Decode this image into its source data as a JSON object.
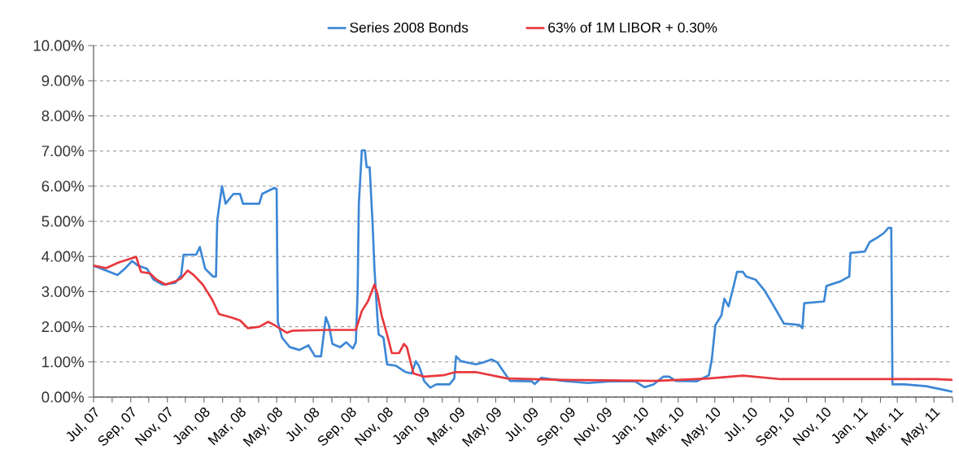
{
  "chart_data": {
    "type": "line",
    "legend": "top",
    "grid": "y",
    "line_style": "solid",
    "xlim": [
      "2007-07-01",
      "2011-06-01"
    ],
    "ylim": [
      0,
      10
    ],
    "yticks": [
      {
        "value": 0,
        "label": "0.00%"
      },
      {
        "value": 1,
        "label": "1.00%"
      },
      {
        "value": 2,
        "label": "2.00%"
      },
      {
        "value": 3,
        "label": "3.00%"
      },
      {
        "value": 4,
        "label": "4.00%"
      },
      {
        "value": 5,
        "label": "5.00%"
      },
      {
        "value": 6,
        "label": "6.00%"
      },
      {
        "value": 7,
        "label": "7.00%"
      },
      {
        "value": 8,
        "label": "8.00%"
      },
      {
        "value": 9,
        "label": "9.00%"
      },
      {
        "value": 10,
        "label": "10.00%"
      }
    ],
    "xticks": [
      {
        "value": "2007-07-01",
        "label": "Jul, 07"
      },
      {
        "value": "2007-08-01",
        "label": null
      },
      {
        "value": "2007-09-01",
        "label": "Sep, 07"
      },
      {
        "value": "2007-10-01",
        "label": null
      },
      {
        "value": "2007-11-01",
        "label": "Nov, 07"
      },
      {
        "value": "2007-12-01",
        "label": null
      },
      {
        "value": "2008-01-01",
        "label": "Jan, 08"
      },
      {
        "value": "2008-02-01",
        "label": null
      },
      {
        "value": "2008-03-01",
        "label": "Mar, 08"
      },
      {
        "value": "2008-04-01",
        "label": null
      },
      {
        "value": "2008-05-01",
        "label": "May, 08"
      },
      {
        "value": "2008-06-01",
        "label": null
      },
      {
        "value": "2008-07-01",
        "label": "Jul, 08"
      },
      {
        "value": "2008-08-01",
        "label": null
      },
      {
        "value": "2008-09-01",
        "label": "Sep, 08"
      },
      {
        "value": "2008-10-01",
        "label": null
      },
      {
        "value": "2008-11-01",
        "label": "Nov, 08"
      },
      {
        "value": "2008-12-01",
        "label": null
      },
      {
        "value": "2009-01-01",
        "label": "Jan, 09"
      },
      {
        "value": "2009-02-01",
        "label": null
      },
      {
        "value": "2009-03-01",
        "label": "Mar, 09"
      },
      {
        "value": "2009-04-01",
        "label": null
      },
      {
        "value": "2009-05-01",
        "label": "May, 09"
      },
      {
        "value": "2009-06-01",
        "label": null
      },
      {
        "value": "2009-07-01",
        "label": "Jul, 09"
      },
      {
        "value": "2009-08-01",
        "label": null
      },
      {
        "value": "2009-09-01",
        "label": "Sep, 09"
      },
      {
        "value": "2009-10-01",
        "label": null
      },
      {
        "value": "2009-11-01",
        "label": "Nov, 09"
      },
      {
        "value": "2009-12-01",
        "label": null
      },
      {
        "value": "2010-01-01",
        "label": "Jan, 10"
      },
      {
        "value": "2010-02-01",
        "label": null
      },
      {
        "value": "2010-03-01",
        "label": "Mar, 10"
      },
      {
        "value": "2010-04-01",
        "label": null
      },
      {
        "value": "2010-05-01",
        "label": "May, 10"
      },
      {
        "value": "2010-06-01",
        "label": null
      },
      {
        "value": "2010-07-01",
        "label": "Jul, 10"
      },
      {
        "value": "2010-08-01",
        "label": null
      },
      {
        "value": "2010-09-01",
        "label": "Sep, 10"
      },
      {
        "value": "2010-10-01",
        "label": null
      },
      {
        "value": "2010-11-01",
        "label": "Nov, 10"
      },
      {
        "value": "2010-12-01",
        "label": null
      },
      {
        "value": "2011-01-01",
        "label": "Jan, 11"
      },
      {
        "value": "2011-02-01",
        "label": null
      },
      {
        "value": "2011-03-01",
        "label": "Mar, 11"
      },
      {
        "value": "2011-04-01",
        "label": null
      },
      {
        "value": "2011-05-01",
        "label": "May, 11"
      },
      {
        "value": "2011-06-01",
        "label": null
      }
    ],
    "series": [
      {
        "name": "Series 2008 Bonds",
        "color": "#3c87d6",
        "x": [
          "2007-07-01",
          "2007-07-22",
          "2007-08-10",
          "2007-08-22",
          "2007-09-03",
          "2007-09-13",
          "2007-09-28",
          "2007-10-09",
          "2007-10-24",
          "2007-11-14",
          "2007-11-24",
          "2007-11-28",
          "2007-12-19",
          "2007-12-25",
          "2008-01-03",
          "2008-01-16",
          "2008-01-21",
          "2008-01-23",
          "2008-01-31",
          "2008-02-06",
          "2008-02-19",
          "2008-03-01",
          "2008-03-06",
          "2008-04-02",
          "2008-04-07",
          "2008-04-27",
          "2008-05-01",
          "2008-05-03",
          "2008-05-10",
          "2008-05-23",
          "2008-06-08",
          "2008-06-23",
          "2008-07-04",
          "2008-07-14",
          "2008-07-22",
          "2008-07-27",
          "2008-08-02",
          "2008-08-15",
          "2008-08-25",
          "2008-09-05",
          "2008-09-10",
          "2008-09-13",
          "2008-09-15",
          "2008-09-20",
          "2008-09-25",
          "2008-09-28",
          "2008-10-03",
          "2008-10-08",
          "2008-10-11",
          "2008-10-16",
          "2008-10-18",
          "2008-10-26",
          "2008-11-01",
          "2008-11-16",
          "2008-12-02",
          "2008-12-12",
          "2008-12-19",
          "2008-12-24",
          "2009-01-02",
          "2009-01-12",
          "2009-01-22",
          "2009-02-13",
          "2009-02-21",
          "2009-02-24",
          "2009-03-04",
          "2009-03-29",
          "2009-04-09",
          "2009-04-24",
          "2009-05-04",
          "2009-05-20",
          "2009-05-25",
          "2009-06-30",
          "2009-07-05",
          "2009-07-16",
          "2009-08-21",
          "2009-10-02",
          "2009-11-08",
          "2009-12-19",
          "2010-01-04",
          "2010-01-19",
          "2010-02-04",
          "2010-02-14",
          "2010-02-25",
          "2010-04-01",
          "2010-04-21",
          "2010-04-26",
          "2010-05-02",
          "2010-05-12",
          "2010-05-17",
          "2010-05-24",
          "2010-06-02",
          "2010-06-07",
          "2010-06-17",
          "2010-06-22",
          "2010-07-08",
          "2010-07-23",
          "2010-08-09",
          "2010-08-24",
          "2010-09-19",
          "2010-09-24",
          "2010-09-27",
          "2010-10-30",
          "2010-11-03",
          "2010-11-26",
          "2010-12-11",
          "2010-12-13",
          "2011-01-06",
          "2011-01-14",
          "2011-01-27",
          "2011-02-07",
          "2011-02-14",
          "2011-02-19",
          "2011-02-21",
          "2011-03-13",
          "2011-04-18",
          "2011-05-19",
          "2011-06-01"
        ],
        "values": [
          3.74,
          3.6,
          3.47,
          3.65,
          3.87,
          3.74,
          3.65,
          3.34,
          3.2,
          3.25,
          3.47,
          4.05,
          4.05,
          4.27,
          3.65,
          3.43,
          3.43,
          5.02,
          6.0,
          5.5,
          5.78,
          5.78,
          5.5,
          5.5,
          5.78,
          5.95,
          5.92,
          2.14,
          1.69,
          1.42,
          1.34,
          1.47,
          1.16,
          1.16,
          2.27,
          2.05,
          1.51,
          1.42,
          1.56,
          1.38,
          1.56,
          3.03,
          5.5,
          7.02,
          7.02,
          6.54,
          6.54,
          4.89,
          3.65,
          2.23,
          1.78,
          1.69,
          0.93,
          0.89,
          0.71,
          0.67,
          1.02,
          0.89,
          0.45,
          0.27,
          0.36,
          0.36,
          0.53,
          1.16,
          1.02,
          0.93,
          0.98,
          1.07,
          0.98,
          0.58,
          0.46,
          0.45,
          0.37,
          0.55,
          0.46,
          0.4,
          0.45,
          0.45,
          0.28,
          0.36,
          0.58,
          0.58,
          0.46,
          0.45,
          0.62,
          1.07,
          2.05,
          2.32,
          2.8,
          2.58,
          3.2,
          3.56,
          3.56,
          3.43,
          3.34,
          3.03,
          2.54,
          2.09,
          2.05,
          1.96,
          2.67,
          2.72,
          3.16,
          3.29,
          3.43,
          4.1,
          4.14,
          4.41,
          4.54,
          4.67,
          4.81,
          4.81,
          0.36,
          0.36,
          0.31,
          0.2,
          0.15
        ]
      },
      {
        "name": "63% of 1M LIBOR + 0.30%",
        "color": "#e8383d",
        "x": [
          "2007-07-01",
          "2007-07-22",
          "2007-08-12",
          "2007-08-28",
          "2007-09-10",
          "2007-09-18",
          "2007-10-03",
          "2007-10-14",
          "2007-10-29",
          "2007-11-14",
          "2007-11-24",
          "2007-12-05",
          "2007-12-15",
          "2007-12-30",
          "2008-01-15",
          "2008-01-26",
          "2008-02-15",
          "2008-03-01",
          "2008-03-14",
          "2008-04-02",
          "2008-04-17",
          "2008-04-27",
          "2008-05-18",
          "2008-05-28",
          "2008-07-24",
          "2008-09-10",
          "2008-09-20",
          "2008-09-30",
          "2008-10-11",
          "2008-10-16",
          "2008-10-23",
          "2008-11-01",
          "2008-11-09",
          "2008-11-21",
          "2008-11-29",
          "2008-12-04",
          "2008-12-15",
          "2009-01-02",
          "2009-02-03",
          "2009-02-23",
          "2009-03-29",
          "2009-05-20",
          "2009-08-21",
          "2010-01-24",
          "2010-04-21",
          "2010-06-17",
          "2010-08-19",
          "2011-05-04",
          "2011-06-01"
        ],
        "values": [
          3.74,
          3.67,
          3.83,
          3.92,
          3.99,
          3.56,
          3.52,
          3.34,
          3.2,
          3.29,
          3.38,
          3.6,
          3.47,
          3.2,
          2.76,
          2.36,
          2.27,
          2.18,
          1.96,
          2.0,
          2.14,
          2.05,
          1.83,
          1.89,
          1.91,
          1.91,
          2.45,
          2.72,
          3.2,
          2.94,
          2.32,
          1.78,
          1.25,
          1.25,
          1.51,
          1.42,
          0.67,
          0.58,
          0.62,
          0.71,
          0.71,
          0.53,
          0.49,
          0.46,
          0.53,
          0.61,
          0.51,
          0.51,
          0.49
        ]
      }
    ]
  }
}
